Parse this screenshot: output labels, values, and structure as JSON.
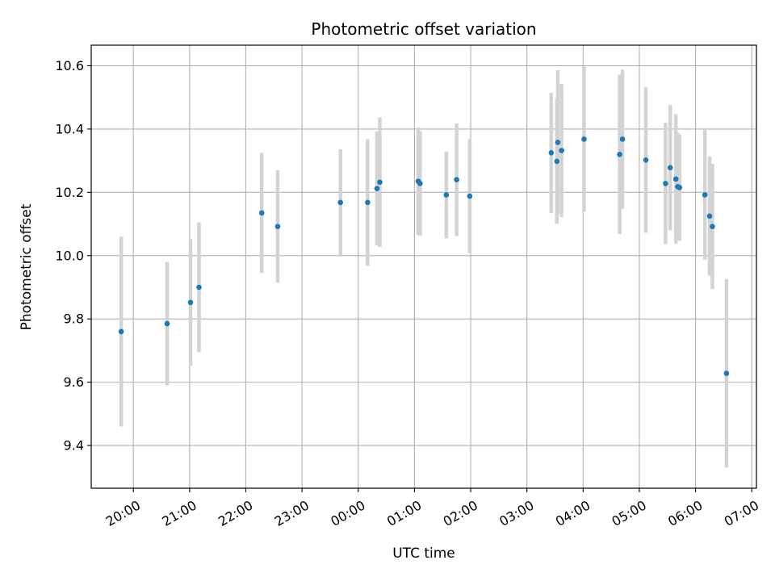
{
  "chart_data": {
    "type": "scatter",
    "title": "Photometric offset variation",
    "xlabel": "UTC time",
    "ylabel": "Photometric offset",
    "x_ticks": [
      "20:00",
      "21:00",
      "22:00",
      "23:00",
      "00:00",
      "01:00",
      "02:00",
      "03:00",
      "04:00",
      "05:00",
      "06:00",
      "07:00"
    ],
    "y_ticks": [
      "9.4",
      "9.6",
      "9.8",
      "10.0",
      "10.2",
      "10.4",
      "10.6"
    ],
    "xlim": [
      "19:15",
      "07:05"
    ],
    "ylim": [
      9.265,
      10.665
    ],
    "grid": true,
    "point_color": "#1f77b4",
    "errorbar_color": "#d3d3d3",
    "points": [
      {
        "t": "19:47",
        "y": 9.76,
        "err": 0.3
      },
      {
        "t": "20:36",
        "y": 9.785,
        "err": 0.195
      },
      {
        "t": "21:01",
        "y": 9.852,
        "err": 0.2
      },
      {
        "t": "21:10",
        "y": 9.9,
        "err": 0.205
      },
      {
        "t": "22:17",
        "y": 10.135,
        "err": 0.19
      },
      {
        "t": "22:34",
        "y": 10.092,
        "err": 0.178
      },
      {
        "t": "23:41",
        "y": 10.168,
        "err": 0.168
      },
      {
        "t": "00:10",
        "y": 10.168,
        "err": 0.2
      },
      {
        "t": "00:20",
        "y": 10.212,
        "err": 0.18
      },
      {
        "t": "00:23",
        "y": 10.232,
        "err": 0.205
      },
      {
        "t": "01:04",
        "y": 10.235,
        "err": 0.17
      },
      {
        "t": "01:06",
        "y": 10.228,
        "err": 0.165
      },
      {
        "t": "01:34",
        "y": 10.192,
        "err": 0.137
      },
      {
        "t": "01:45",
        "y": 10.24,
        "err": 0.178
      },
      {
        "t": "01:59",
        "y": 10.188,
        "err": 0.18
      },
      {
        "t": "03:26",
        "y": 10.325,
        "err": 0.19
      },
      {
        "t": "03:32",
        "y": 10.298,
        "err": 0.198
      },
      {
        "t": "03:33",
        "y": 10.358,
        "err": 0.228
      },
      {
        "t": "03:37",
        "y": 10.332,
        "err": 0.21
      },
      {
        "t": "04:01",
        "y": 10.368,
        "err": 0.23
      },
      {
        "t": "04:39",
        "y": 10.32,
        "err": 0.252
      },
      {
        "t": "04:42",
        "y": 10.368,
        "err": 0.22
      },
      {
        "t": "05:07",
        "y": 10.302,
        "err": 0.23
      },
      {
        "t": "05:28",
        "y": 10.228,
        "err": 0.192
      },
      {
        "t": "05:33",
        "y": 10.278,
        "err": 0.198
      },
      {
        "t": "05:39",
        "y": 10.242,
        "err": 0.205
      },
      {
        "t": "05:41",
        "y": 10.218,
        "err": 0.17
      },
      {
        "t": "05:43",
        "y": 10.215,
        "err": 0.168
      },
      {
        "t": "06:10",
        "y": 10.192,
        "err": 0.205
      },
      {
        "t": "06:15",
        "y": 10.125,
        "err": 0.188
      },
      {
        "t": "06:18",
        "y": 10.092,
        "err": 0.198
      },
      {
        "t": "06:33",
        "y": 9.628,
        "err": 0.298
      }
    ]
  }
}
